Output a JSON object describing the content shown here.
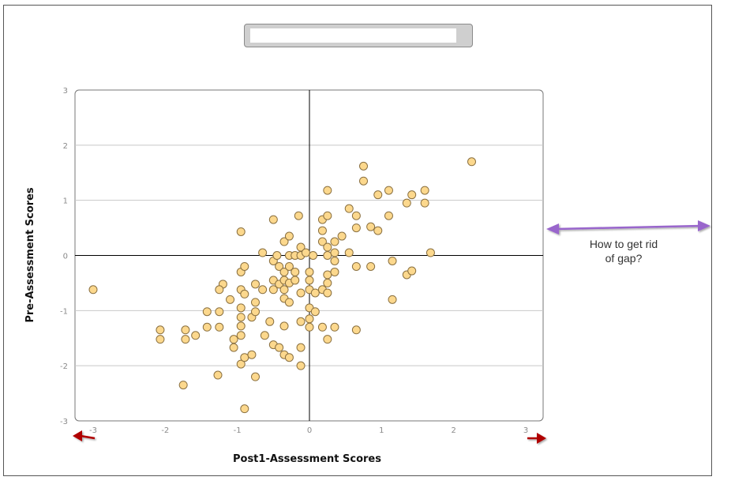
{
  "chart_data": {
    "type": "scatter",
    "title": "",
    "xlabel": "Post1-Assessment Scores",
    "ylabel": "Pre-Assessment Scores",
    "xlim": [
      -3,
      3
    ],
    "ylim": [
      -3,
      3
    ],
    "x_ticks": [
      "-3",
      "-2",
      "-1",
      "0",
      "1",
      "2",
      "3"
    ],
    "y_ticks": [
      "3",
      "2",
      "1",
      "0",
      "-1",
      "-2",
      "-3"
    ],
    "grid": "horizontal",
    "point_color": "#fcd88d",
    "point_edge_color": "#8a7040",
    "points": [
      [
        -3.0,
        -0.62
      ],
      [
        -2.07,
        -1.35
      ],
      [
        -2.07,
        -1.52
      ],
      [
        -1.72,
        -1.35
      ],
      [
        -1.72,
        -1.52
      ],
      [
        -1.58,
        -1.45
      ],
      [
        -1.75,
        -2.35
      ],
      [
        -1.42,
        -1.3
      ],
      [
        -1.42,
        -1.02
      ],
      [
        -1.25,
        -1.3
      ],
      [
        -1.25,
        -1.02
      ],
      [
        -1.2,
        -0.52
      ],
      [
        -1.25,
        -0.62
      ],
      [
        -1.27,
        -2.17
      ],
      [
        -1.1,
        -0.8
      ],
      [
        -1.05,
        -1.52
      ],
      [
        -1.05,
        -1.67
      ],
      [
        -0.95,
        -1.45
      ],
      [
        -0.95,
        -1.28
      ],
      [
        -0.95,
        -1.12
      ],
      [
        -0.95,
        -0.95
      ],
      [
        -0.95,
        -0.3
      ],
      [
        -0.95,
        -0.62
      ],
      [
        -0.9,
        -0.7
      ],
      [
        -0.9,
        -0.2
      ],
      [
        -0.95,
        0.43
      ],
      [
        -0.95,
        -1.97
      ],
      [
        -0.9,
        -1.85
      ],
      [
        -0.9,
        -2.78
      ],
      [
        -0.8,
        -1.8
      ],
      [
        -0.8,
        -1.12
      ],
      [
        -0.75,
        -1.02
      ],
      [
        -0.75,
        -0.85
      ],
      [
        -0.75,
        -0.52
      ],
      [
        -0.75,
        -2.2
      ],
      [
        -0.65,
        -0.62
      ],
      [
        -0.65,
        0.05
      ],
      [
        -0.62,
        -1.45
      ],
      [
        -0.55,
        -1.2
      ],
      [
        -0.5,
        -1.62
      ],
      [
        -0.5,
        -0.62
      ],
      [
        -0.5,
        -0.45
      ],
      [
        -0.5,
        -0.1
      ],
      [
        -0.5,
        0.65
      ],
      [
        -0.45,
        0.0
      ],
      [
        -0.42,
        -0.2
      ],
      [
        -0.42,
        -0.52
      ],
      [
        -0.42,
        -1.67
      ],
      [
        -0.35,
        -1.8
      ],
      [
        -0.35,
        -1.28
      ],
      [
        -0.35,
        -0.78
      ],
      [
        -0.35,
        -0.62
      ],
      [
        -0.35,
        -0.45
      ],
      [
        -0.35,
        -0.3
      ],
      [
        -0.35,
        0.25
      ],
      [
        -0.28,
        0.35
      ],
      [
        -0.28,
        0.0
      ],
      [
        -0.28,
        -0.2
      ],
      [
        -0.28,
        -0.5
      ],
      [
        -0.28,
        -0.85
      ],
      [
        -0.28,
        -1.85
      ],
      [
        -0.2,
        -0.45
      ],
      [
        -0.2,
        -0.3
      ],
      [
        -0.2,
        0.0
      ],
      [
        -0.15,
        0.72
      ],
      [
        -0.12,
        0.15
      ],
      [
        -0.12,
        0.0
      ],
      [
        -0.12,
        -0.68
      ],
      [
        -0.12,
        -1.2
      ],
      [
        -0.12,
        -1.67
      ],
      [
        -0.12,
        -2.0
      ],
      [
        -0.05,
        0.05
      ],
      [
        0.0,
        -0.3
      ],
      [
        0.0,
        -0.45
      ],
      [
        0.0,
        -0.62
      ],
      [
        0.0,
        -0.95
      ],
      [
        0.0,
        -1.15
      ],
      [
        0.0,
        -1.3
      ],
      [
        0.05,
        0.0
      ],
      [
        0.08,
        -1.02
      ],
      [
        0.08,
        -0.68
      ],
      [
        0.18,
        -0.62
      ],
      [
        0.18,
        -1.3
      ],
      [
        0.18,
        0.25
      ],
      [
        0.18,
        0.45
      ],
      [
        0.18,
        0.65
      ],
      [
        0.25,
        0.0
      ],
      [
        0.25,
        0.15
      ],
      [
        0.25,
        -0.35
      ],
      [
        0.25,
        -0.5
      ],
      [
        0.25,
        -0.68
      ],
      [
        0.25,
        -1.52
      ],
      [
        0.25,
        0.72
      ],
      [
        0.25,
        1.18
      ],
      [
        0.35,
        0.25
      ],
      [
        0.35,
        0.05
      ],
      [
        0.35,
        -0.1
      ],
      [
        0.35,
        -0.3
      ],
      [
        0.35,
        -1.3
      ],
      [
        0.45,
        0.35
      ],
      [
        0.55,
        0.05
      ],
      [
        0.55,
        0.85
      ],
      [
        0.65,
        0.5
      ],
      [
        0.65,
        0.72
      ],
      [
        0.65,
        -0.2
      ],
      [
        0.65,
        -1.35
      ],
      [
        0.75,
        1.35
      ],
      [
        0.75,
        1.62
      ],
      [
        0.85,
        0.52
      ],
      [
        0.85,
        -0.2
      ],
      [
        0.95,
        0.45
      ],
      [
        0.95,
        1.1
      ],
      [
        1.1,
        1.18
      ],
      [
        1.1,
        0.72
      ],
      [
        1.15,
        -0.1
      ],
      [
        1.15,
        -0.8
      ],
      [
        1.35,
        0.95
      ],
      [
        1.35,
        -0.35
      ],
      [
        1.42,
        1.1
      ],
      [
        1.42,
        -0.28
      ],
      [
        1.6,
        1.18
      ],
      [
        1.6,
        0.95
      ],
      [
        1.68,
        0.05
      ],
      [
        2.25,
        1.7
      ]
    ]
  },
  "annotation": {
    "line1": "How to get rid",
    "line2": "of gap?",
    "arrow_color": "#9966cc",
    "edge_arrow_color": "#b00000"
  }
}
